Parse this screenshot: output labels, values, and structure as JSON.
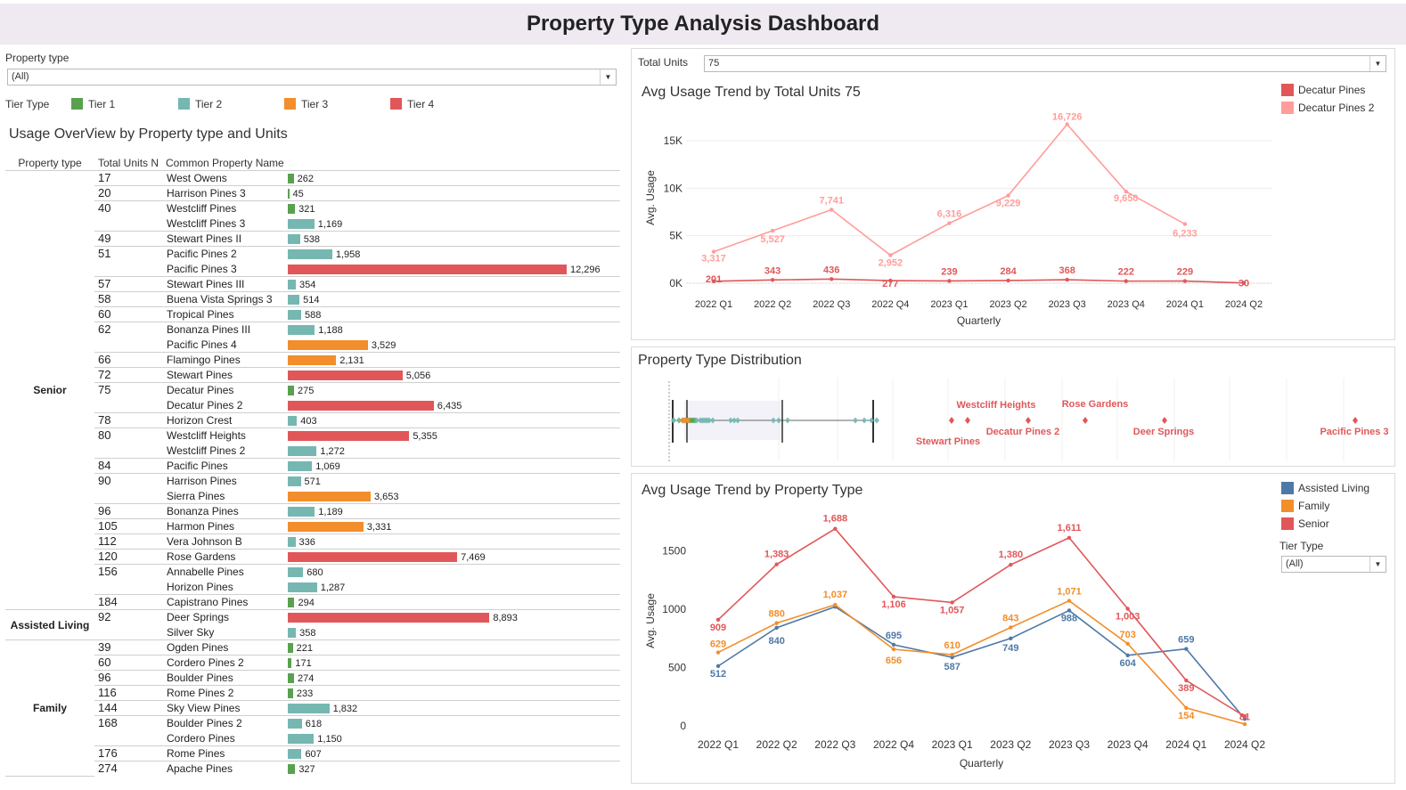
{
  "header": {
    "title": "Property Type Analysis Dashboard"
  },
  "filters": {
    "property_type_label": "Property type",
    "property_type_value": "(All)",
    "total_units_label": "Total Units",
    "total_units_value": "75",
    "tier_type_label": "Tier Type",
    "tier_type_value": "(All)"
  },
  "tier_legend": {
    "label": "Tier Type",
    "items": [
      {
        "name": "Tier 1",
        "color": "#59a14f"
      },
      {
        "name": "Tier 2",
        "color": "#76b7b2"
      },
      {
        "name": "Tier 3",
        "color": "#f28e2b"
      },
      {
        "name": "Tier 4",
        "color": "#e15759"
      }
    ]
  },
  "overview": {
    "title": "Usage OverView by Property type and Units",
    "columns": [
      "Property type",
      "Total Units N",
      "Common Property Name"
    ],
    "max_value": 12296,
    "groups": [
      {
        "type": "Senior",
        "rows": [
          {
            "units": "17",
            "name": "West Owens",
            "value": 262,
            "label": "262",
            "tier": 1
          },
          {
            "units": "20",
            "name": "Harrison Pines 3",
            "value": 45,
            "label": "45",
            "tier": 1
          },
          {
            "units": "40",
            "name": "Westcliff Pines",
            "value": 321,
            "label": "321",
            "tier": 1
          },
          {
            "units": "",
            "name": "Westcliff Pines 3",
            "value": 1169,
            "label": "1,169",
            "tier": 2
          },
          {
            "units": "49",
            "name": "Stewart Pines II",
            "value": 538,
            "label": "538",
            "tier": 2
          },
          {
            "units": "51",
            "name": "Pacific Pines 2",
            "value": 1958,
            "label": "1,958",
            "tier": 2
          },
          {
            "units": "",
            "name": "Pacific Pines 3",
            "value": 12296,
            "label": "12,296",
            "tier": 4
          },
          {
            "units": "57",
            "name": "Stewart Pines III",
            "value": 354,
            "label": "354",
            "tier": 2
          },
          {
            "units": "58",
            "name": "Buena Vista Springs 3",
            "value": 514,
            "label": "514",
            "tier": 2
          },
          {
            "units": "60",
            "name": "Tropical Pines",
            "value": 588,
            "label": "588",
            "tier": 2
          },
          {
            "units": "62",
            "name": "Bonanza Pines III",
            "value": 1188,
            "label": "1,188",
            "tier": 2
          },
          {
            "units": "",
            "name": "Pacific Pines 4",
            "value": 3529,
            "label": "3,529",
            "tier": 3
          },
          {
            "units": "66",
            "name": "Flamingo Pines",
            "value": 2131,
            "label": "2,131",
            "tier": 3
          },
          {
            "units": "72",
            "name": "Stewart Pines",
            "value": 5056,
            "label": "5,056",
            "tier": 4
          },
          {
            "units": "75",
            "name": "Decatur Pines",
            "value": 275,
            "label": "275",
            "tier": 1
          },
          {
            "units": "",
            "name": "Decatur Pines 2",
            "value": 6435,
            "label": "6,435",
            "tier": 4
          },
          {
            "units": "78",
            "name": "Horizon Crest",
            "value": 403,
            "label": "403",
            "tier": 2
          },
          {
            "units": "80",
            "name": "Westcliff Heights",
            "value": 5355,
            "label": "5,355",
            "tier": 4
          },
          {
            "units": "",
            "name": "Westcliff Pines 2",
            "value": 1272,
            "label": "1,272",
            "tier": 2
          },
          {
            "units": "84",
            "name": "Pacific Pines",
            "value": 1069,
            "label": "1,069",
            "tier": 2
          },
          {
            "units": "90",
            "name": "Harrison Pines",
            "value": 571,
            "label": "571",
            "tier": 2
          },
          {
            "units": "",
            "name": "Sierra Pines",
            "value": 3653,
            "label": "3,653",
            "tier": 3
          },
          {
            "units": "96",
            "name": "Bonanza Pines",
            "value": 1189,
            "label": "1,189",
            "tier": 2
          },
          {
            "units": "105",
            "name": "Harmon Pines",
            "value": 3331,
            "label": "3,331",
            "tier": 3
          },
          {
            "units": "112",
            "name": "Vera Johnson B",
            "value": 336,
            "label": "336",
            "tier": 2
          },
          {
            "units": "120",
            "name": "Rose Gardens",
            "value": 7469,
            "label": "7,469",
            "tier": 4
          },
          {
            "units": "156",
            "name": "Annabelle Pines",
            "value": 680,
            "label": "680",
            "tier": 2
          },
          {
            "units": "",
            "name": "Horizon Pines",
            "value": 1287,
            "label": "1,287",
            "tier": 2
          },
          {
            "units": "184",
            "name": "Capistrano Pines",
            "value": 294,
            "label": "294",
            "tier": 1
          }
        ]
      },
      {
        "type": "Assisted Living",
        "rows": [
          {
            "units": "92",
            "name": "Deer Springs",
            "value": 8893,
            "label": "8,893",
            "tier": 4
          },
          {
            "units": "",
            "name": "Silver Sky",
            "value": 358,
            "label": "358",
            "tier": 2
          }
        ]
      },
      {
        "type": "Family",
        "rows": [
          {
            "units": "39",
            "name": "Ogden Pines",
            "value": 221,
            "label": "221",
            "tier": 1
          },
          {
            "units": "60",
            "name": "Cordero Pines 2",
            "value": 171,
            "label": "171",
            "tier": 1
          },
          {
            "units": "96",
            "name": "Boulder Pines",
            "value": 274,
            "label": "274",
            "tier": 1
          },
          {
            "units": "116",
            "name": "Rome Pines 2",
            "value": 233,
            "label": "233",
            "tier": 1
          },
          {
            "units": "144",
            "name": "Sky View Pines",
            "value": 1832,
            "label": "1,832",
            "tier": 2
          },
          {
            "units": "168",
            "name": "Boulder Pines 2",
            "value": 618,
            "label": "618",
            "tier": 2
          },
          {
            "units": "",
            "name": "Cordero Pines",
            "value": 1150,
            "label": "1,150",
            "tier": 2
          },
          {
            "units": "176",
            "name": "Rome Pines",
            "value": 607,
            "label": "607",
            "tier": 2
          },
          {
            "units": "274",
            "name": "Apache Pines",
            "value": 327,
            "label": "327",
            "tier": 1
          }
        ]
      }
    ]
  },
  "chart_data": [
    {
      "type": "line",
      "title": "Avg Usage Trend by Total Units 75",
      "xlabel": "Quarterly",
      "ylabel": "Avg. Usage",
      "categories": [
        "2022 Q1",
        "2022 Q2",
        "2022 Q3",
        "2022 Q4",
        "2023 Q1",
        "2023 Q2",
        "2023 Q3",
        "2023 Q4",
        "2024 Q1",
        "2024 Q2"
      ],
      "ylim": [
        0,
        18000
      ],
      "yticks": [
        0,
        5000,
        10000,
        15000
      ],
      "ytick_labels": [
        "0K",
        "5K",
        "10K",
        "15K"
      ],
      "grid": true,
      "legend": "top-right",
      "series": [
        {
          "name": "Decatur Pines",
          "color": "#e15759",
          "values": [
            201,
            343,
            436,
            277,
            239,
            284,
            368,
            222,
            229,
            30
          ],
          "labels": [
            "201",
            "343",
            "436",
            "277",
            "239",
            "284",
            "368",
            "222",
            "229",
            "30"
          ]
        },
        {
          "name": "Decatur Pines 2",
          "color": "#ff9d9a",
          "values": [
            3317,
            5527,
            7741,
            2952,
            6316,
            9229,
            16726,
            9650,
            6233,
            null
          ],
          "labels": [
            "3,317",
            "5,527",
            "7,741",
            "2,952",
            "6,316",
            "9,229",
            "16,726",
            "9,650",
            "6,233",
            ""
          ]
        }
      ]
    },
    {
      "type": "scatter",
      "title": "Property Type Distribution",
      "points": [
        {
          "name": "",
          "value": 45,
          "tier": 1
        },
        {
          "name": "",
          "value": 171,
          "tier": 1
        },
        {
          "name": "",
          "value": 221,
          "tier": 1
        },
        {
          "name": "",
          "value": 233,
          "tier": 1
        },
        {
          "name": "",
          "value": 262,
          "tier": 1
        },
        {
          "name": "",
          "value": 274,
          "tier": 1
        },
        {
          "name": "",
          "value": 275,
          "tier": 1
        },
        {
          "name": "",
          "value": 294,
          "tier": 1
        },
        {
          "name": "",
          "value": 321,
          "tier": 1
        },
        {
          "name": "",
          "value": 327,
          "tier": 1
        },
        {
          "name": "",
          "value": 336,
          "tier": 2
        },
        {
          "name": "",
          "value": 354,
          "tier": 2
        },
        {
          "name": "",
          "value": 358,
          "tier": 2
        },
        {
          "name": "",
          "value": 403,
          "tier": 2
        },
        {
          "name": "",
          "value": 514,
          "tier": 2
        },
        {
          "name": "",
          "value": 538,
          "tier": 2
        },
        {
          "name": "",
          "value": 571,
          "tier": 2
        },
        {
          "name": "",
          "value": 588,
          "tier": 2
        },
        {
          "name": "",
          "value": 607,
          "tier": 2
        },
        {
          "name": "",
          "value": 618,
          "tier": 2
        },
        {
          "name": "",
          "value": 680,
          "tier": 2
        },
        {
          "name": "",
          "value": 1069,
          "tier": 2
        },
        {
          "name": "",
          "value": 1150,
          "tier": 2
        },
        {
          "name": "",
          "value": 1169,
          "tier": 2
        },
        {
          "name": "",
          "value": 1188,
          "tier": 2
        },
        {
          "name": "",
          "value": 1189,
          "tier": 2
        },
        {
          "name": "",
          "value": 1272,
          "tier": 2
        },
        {
          "name": "",
          "value": 1287,
          "tier": 2
        },
        {
          "name": "",
          "value": 1832,
          "tier": 2
        },
        {
          "name": "",
          "value": 1958,
          "tier": 2
        },
        {
          "name": "",
          "value": 2131,
          "tier": 3
        },
        {
          "name": "",
          "value": 3331,
          "tier": 3
        },
        {
          "name": "",
          "value": 3529,
          "tier": 3
        },
        {
          "name": "",
          "value": 3653,
          "tier": 3
        },
        {
          "name": "Stewart Pines",
          "value": 5056,
          "tier": 4
        },
        {
          "name": "Westcliff Heights",
          "value": 5355,
          "tier": 4
        },
        {
          "name": "Decatur Pines 2",
          "value": 6435,
          "tier": 4
        },
        {
          "name": "Rose Gardens",
          "value": 7469,
          "tier": 4
        },
        {
          "name": "Deer Springs",
          "value": 8893,
          "tier": 4
        },
        {
          "name": "Pacific Pines 3",
          "value": 12296,
          "tier": 4
        }
      ]
    },
    {
      "type": "line",
      "title": "Avg Usage Trend by Property Type",
      "xlabel": "Quarterly",
      "ylabel": "Avg. Usage",
      "categories": [
        "2022 Q1",
        "2022 Q2",
        "2022 Q3",
        "2022 Q4",
        "2023 Q1",
        "2023 Q2",
        "2023 Q3",
        "2023 Q4",
        "2024 Q1",
        "2024 Q2"
      ],
      "ylim": [
        0,
        1800
      ],
      "yticks": [
        0,
        500,
        1000,
        1500
      ],
      "ytick_labels": [
        "0",
        "500",
        "1000",
        "1500"
      ],
      "grid": false,
      "legend": "top-right",
      "series": [
        {
          "name": "Assisted Living",
          "color": "#4e79a7",
          "values": [
            512,
            840,
            1020,
            695,
            587,
            749,
            988,
            604,
            659,
            60
          ],
          "labels": [
            "512",
            "840",
            "",
            "695",
            "587",
            "749",
            "988",
            "604",
            "659",
            ""
          ]
        },
        {
          "name": "Family",
          "color": "#f28e2b",
          "values": [
            629,
            880,
            1037,
            656,
            610,
            843,
            1071,
            703,
            154,
            15
          ],
          "labels": [
            "629",
            "880",
            "1,037",
            "656",
            "610",
            "843",
            "1,071",
            "703",
            "154",
            ""
          ]
        },
        {
          "name": "Senior",
          "color": "#e15759",
          "values": [
            909,
            1383,
            1688,
            1106,
            1057,
            1380,
            1611,
            1003,
            389,
            81
          ],
          "labels": [
            "909",
            "1,383",
            "1,688",
            "1,106",
            "1,057",
            "1,380",
            "1,611",
            "1,003",
            "389",
            "81"
          ]
        }
      ]
    }
  ]
}
